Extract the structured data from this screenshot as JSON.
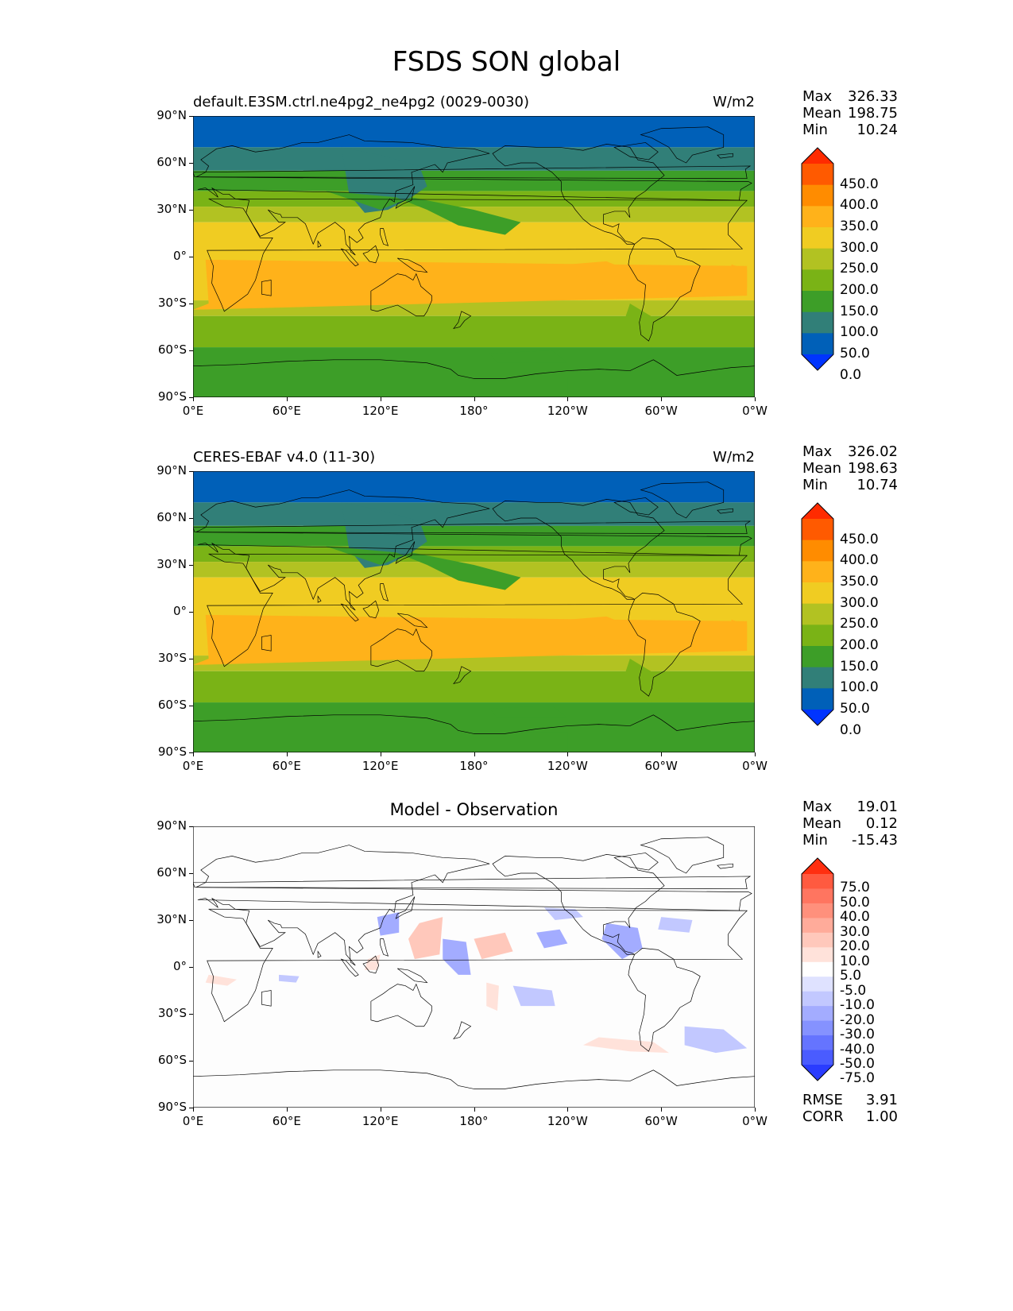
{
  "title": "FSDS SON global",
  "panels": [
    {
      "name": "model",
      "left_label": "default.E3SM.ctrl.ne4pg2_ne4pg2 (0029-0030)",
      "center_label": "",
      "units": "W/m2",
      "stats": {
        "max_label": "Max",
        "max": "326.33",
        "mean_label": "Mean",
        "mean": "198.75",
        "min_label": "Min",
        "min": "10.24"
      },
      "colorbar": {
        "levels": [
          "450.0",
          "400.0",
          "350.0",
          "300.0",
          "250.0",
          "200.0",
          "150.0",
          "100.0",
          "50.0",
          "0.0"
        ],
        "colors": [
          "#ff2b00",
          "#ff5a00",
          "#ff8c00",
          "#ffb21a",
          "#f0cc22",
          "#b2c222",
          "#7ab316",
          "#3d9e28",
          "#317f78",
          "#0060b8",
          "#0034ff"
        ]
      }
    },
    {
      "name": "observation",
      "left_label": "CERES-EBAF v4.0 (11-30)",
      "center_label": "",
      "units": "W/m2",
      "stats": {
        "max_label": "Max",
        "max": "326.02",
        "mean_label": "Mean",
        "mean": "198.63",
        "min_label": "Min",
        "min": "10.74"
      },
      "colorbar": {
        "levels": [
          "450.0",
          "400.0",
          "350.0",
          "300.0",
          "250.0",
          "200.0",
          "150.0",
          "100.0",
          "50.0",
          "0.0"
        ],
        "colors": [
          "#ff2b00",
          "#ff5a00",
          "#ff8c00",
          "#ffb21a",
          "#f0cc22",
          "#b2c222",
          "#7ab316",
          "#3d9e28",
          "#317f78",
          "#0060b8",
          "#0034ff"
        ]
      }
    },
    {
      "name": "difference",
      "left_label": "",
      "center_label": "Model - Observation",
      "units": "",
      "stats": {
        "max_label": "Max",
        "max": "19.01",
        "mean_label": "Mean",
        "mean": "0.12",
        "min_label": "Min",
        "min": "-15.43"
      },
      "colorbar": {
        "levels": [
          "75.0",
          "50.0",
          "40.0",
          "30.0",
          "20.0",
          "10.0",
          "5.0",
          "-5.0",
          "-10.0",
          "-20.0",
          "-30.0",
          "-40.0",
          "-50.0",
          "-75.0"
        ],
        "colors": [
          "#ff2f10",
          "#ff5a40",
          "#ff7560",
          "#ff907c",
          "#ffab9a",
          "#ffc8bb",
          "#ffe2da",
          "#ffffff",
          "#dfe2ff",
          "#c2c8ff",
          "#a3acff",
          "#8592ff",
          "#6574ff",
          "#4a5cff",
          "#2a3cff"
        ]
      },
      "rmse_label": "RMSE",
      "rmse": "3.91",
      "corr_label": "CORR",
      "corr": "1.00"
    }
  ],
  "lat_ticks": [
    "90°N",
    "60°N",
    "30°N",
    "0°",
    "30°S",
    "60°S",
    "90°S"
  ],
  "lon_ticks": [
    "0°E",
    "60°E",
    "120°E",
    "180°",
    "120°W",
    "60°W",
    "0°W"
  ]
}
